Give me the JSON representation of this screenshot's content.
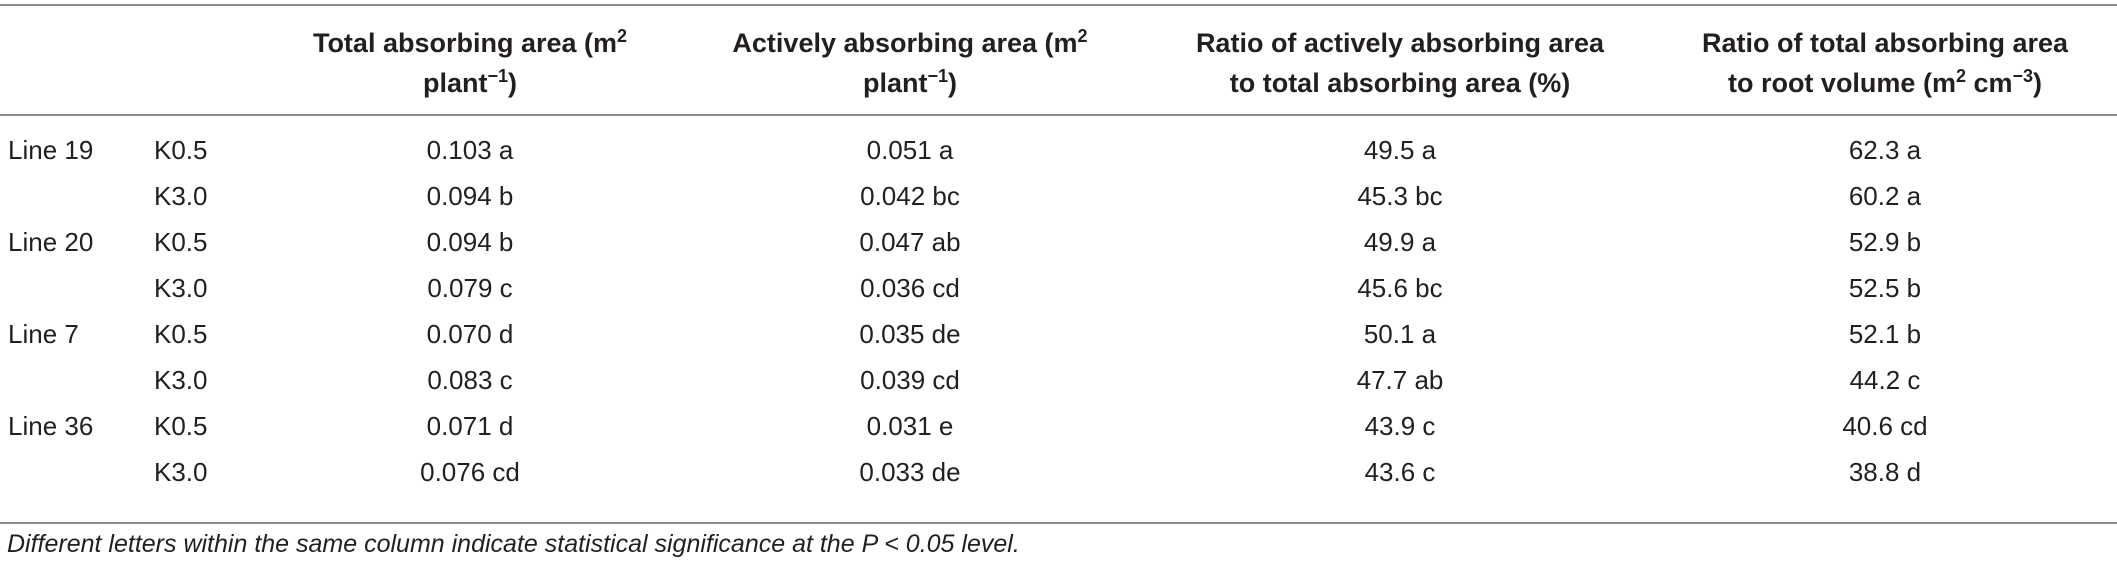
{
  "table": {
    "headers": [
      {
        "text": "Total absorbing area (m",
        "sup": "2",
        "text2": "plant",
        "sup2": "−1",
        "text3": ")"
      },
      {
        "text": "Actively absorbing area (m",
        "sup": "2",
        "text2": "plant",
        "sup2": "−1",
        "text3": ")"
      },
      {
        "line1": "Ratio of actively absorbing area",
        "line2": "to total absorbing area (%)"
      },
      {
        "line1": "Ratio of total absorbing area",
        "line2a": "to root volume (m",
        "sup": "2",
        "line2b": " cm",
        "sup2": "−3",
        "line2c": ")"
      }
    ],
    "rows": [
      {
        "line": "Line 19",
        "treatment": "K0.5",
        "total": "0.103 a",
        "active": "0.051 a",
        "ratio_active": "49.5 a",
        "ratio_volume": "62.3 a"
      },
      {
        "line": "",
        "treatment": "K3.0",
        "total": "0.094 b",
        "active": "0.042 bc",
        "ratio_active": "45.3 bc",
        "ratio_volume": "60.2 a"
      },
      {
        "line": "Line 20",
        "treatment": "K0.5",
        "total": "0.094 b",
        "active": "0.047 ab",
        "ratio_active": "49.9 a",
        "ratio_volume": "52.9 b"
      },
      {
        "line": "",
        "treatment": "K3.0",
        "total": "0.079 c",
        "active": "0.036 cd",
        "ratio_active": "45.6 bc",
        "ratio_volume": "52.5 b"
      },
      {
        "line": "Line 7",
        "treatment": "K0.5",
        "total": "0.070 d",
        "active": "0.035 de",
        "ratio_active": "50.1 a",
        "ratio_volume": "52.1 b"
      },
      {
        "line": "",
        "treatment": "K3.0",
        "total": "0.083 c",
        "active": "0.039 cd",
        "ratio_active": "47.7 ab",
        "ratio_volume": "44.2 c"
      },
      {
        "line": "Line 36",
        "treatment": "K0.5",
        "total": "0.071 d",
        "active": "0.031 e",
        "ratio_active": "43.9 c",
        "ratio_volume": "40.6 cd"
      },
      {
        "line": "",
        "treatment": "K3.0",
        "total": "0.076 cd",
        "active": "0.033 de",
        "ratio_active": "43.6 c",
        "ratio_volume": "38.8 d"
      }
    ]
  },
  "footnote": "Different letters within the same column indicate statistical significance at the P < 0.05 level."
}
